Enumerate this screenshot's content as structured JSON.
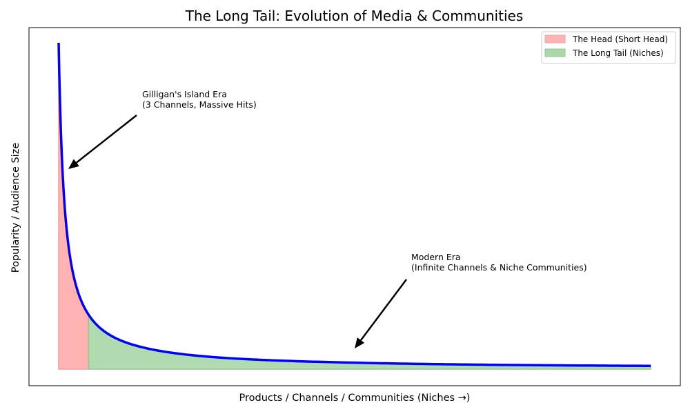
{
  "chart_data": {
    "type": "area",
    "title": "The Long Tail: Evolution of Media & Communities",
    "xlabel": "Products / Channels / Communities (Niches →)",
    "ylabel": "Popularity / Audience Size",
    "xticks": false,
    "yticks": false,
    "grid": false,
    "legend_position": "top-right",
    "curve": {
      "name": "",
      "color": "#0000ff",
      "x": [
        1,
        1.5,
        2,
        3,
        4,
        6,
        8,
        10,
        15,
        20,
        30,
        50,
        75,
        100
      ],
      "y": [
        100,
        66.7,
        50,
        33.3,
        25,
        16.7,
        12.5,
        10,
        6.7,
        5,
        3.3,
        2,
        1.3,
        1
      ],
      "xlim": [
        1,
        100
      ],
      "ylim": [
        0,
        100
      ]
    },
    "regions": [
      {
        "name": "The Head (Short Head)",
        "x_range": [
          1,
          6
        ],
        "color": "#ff9999"
      },
      {
        "name": "The Long Tail (Niches)",
        "x_range": [
          6,
          100
        ],
        "color": "#8fca8f"
      }
    ],
    "annotations": [
      {
        "lines": [
          "Gilligan's Island Era",
          "(3 Channels, Massive Hits)"
        ],
        "point": {
          "x": 2,
          "y": 60
        }
      },
      {
        "lines": [
          "Modern Era",
          "(Infinite Channels & Niche Communities)"
        ],
        "point": {
          "x": 50,
          "y": 6
        }
      }
    ]
  }
}
